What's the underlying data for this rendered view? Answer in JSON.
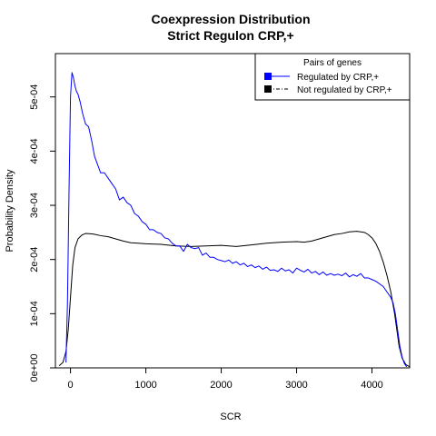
{
  "chart_data": {
    "type": "line",
    "title": "Coexpression Distribution",
    "subtitle": "Strict Regulon CRP,+",
    "xlabel": "SCR",
    "ylabel": "Probability Density",
    "xlim": [
      -200,
      4500
    ],
    "ylim": [
      0,
      0.00058
    ],
    "x_ticks": [
      0,
      1000,
      2000,
      3000,
      4000
    ],
    "x_tick_labels": [
      "0",
      "1000",
      "2000",
      "3000",
      "4000"
    ],
    "y_ticks": [
      0,
      0.0001,
      0.0002,
      0.0003,
      0.0004,
      0.0005
    ],
    "y_tick_labels": [
      "0e+00",
      "1e-04",
      "2e-04",
      "3e-04",
      "4e-04",
      "5e-04"
    ],
    "grid": false,
    "legend": {
      "title": "Pairs of genes",
      "placement": "top-right",
      "entries": [
        {
          "label": "Regulated by  CRP,+",
          "color": "#0000ff",
          "line": "solid"
        },
        {
          "label": "Not regulated by  CRP,+",
          "color": "#000000",
          "line": "dashdot"
        }
      ]
    },
    "series": [
      {
        "name": "Regulated by  CRP,+",
        "color": "#0000ff",
        "x": [
          -60,
          -40,
          -20,
          0,
          20,
          40,
          60,
          80,
          100,
          130,
          160,
          200,
          240,
          280,
          320,
          360,
          400,
          450,
          500,
          550,
          600,
          650,
          700,
          750,
          800,
          850,
          900,
          950,
          1000,
          1050,
          1100,
          1150,
          1200,
          1250,
          1300,
          1350,
          1400,
          1450,
          1500,
          1550,
          1600,
          1650,
          1700,
          1750,
          1800,
          1850,
          1900,
          1950,
          2000,
          2050,
          2100,
          2150,
          2200,
          2250,
          2300,
          2350,
          2400,
          2450,
          2500,
          2550,
          2600,
          2650,
          2700,
          2750,
          2800,
          2850,
          2900,
          2950,
          3000,
          3050,
          3100,
          3150,
          3200,
          3250,
          3300,
          3350,
          3400,
          3450,
          3500,
          3550,
          3600,
          3650,
          3700,
          3750,
          3800,
          3850,
          3900,
          3950,
          4000,
          4050,
          4100,
          4150,
          4200,
          4250,
          4280,
          4310,
          4340,
          4370,
          4400,
          4430,
          4460
        ],
        "values": [
          1e-05,
          0.00012,
          0.00032,
          0.0005,
          0.000545,
          0.000535,
          0.00052,
          0.00051,
          0.000505,
          0.00049,
          0.00047,
          0.00045,
          0.000445,
          0.00042,
          0.00039,
          0.000375,
          0.00036,
          0.00036,
          0.00035,
          0.00034,
          0.00033,
          0.00031,
          0.000315,
          0.000305,
          0.0003,
          0.000285,
          0.00028,
          0.00027,
          0.000265,
          0.000255,
          0.000255,
          0.00025,
          0.000248,
          0.00024,
          0.000238,
          0.00023,
          0.000225,
          0.000225,
          0.000215,
          0.000228,
          0.000222,
          0.00022,
          0.000222,
          0.000208,
          0.000212,
          0.000204,
          0.000204,
          0.0002,
          0.000198,
          0.000196,
          0.000199,
          0.000193,
          0.000196,
          0.00019,
          0.000193,
          0.000187,
          0.00019,
          0.000185,
          0.000188,
          0.000182,
          0.000186,
          0.00018,
          0.000181,
          0.000178,
          0.000184,
          0.000179,
          0.000181,
          0.000175,
          0.000184,
          0.00018,
          0.000177,
          0.000182,
          0.000175,
          0.000178,
          0.000172,
          0.000177,
          0.000171,
          0.000174,
          0.000171,
          0.000173,
          0.00017,
          0.000175,
          0.000168,
          0.000172,
          0.000169,
          0.000174,
          0.000166,
          0.000166,
          0.000163,
          0.00016,
          0.000155,
          0.00015,
          0.00014,
          0.00013,
          0.00012,
          0.0001,
          7e-05,
          4e-05,
          2e-05,
          8e-06,
          2e-06
        ]
      },
      {
        "name": "Not regulated by  CRP,+",
        "color": "#000000",
        "x": [
          -150,
          -100,
          -60,
          -30,
          0,
          30,
          60,
          100,
          150,
          200,
          300,
          400,
          500,
          600,
          700,
          800,
          900,
          1000,
          1200,
          1400,
          1600,
          1800,
          2000,
          2200,
          2400,
          2600,
          2800,
          3000,
          3100,
          3200,
          3300,
          3400,
          3500,
          3600,
          3700,
          3800,
          3900,
          3950,
          4000,
          4050,
          4100,
          4150,
          4200,
          4250,
          4300,
          4330,
          4360,
          4400,
          4450,
          4500
        ],
        "values": [
          4e-06,
          1e-05,
          3e-05,
          7e-05,
          0.00013,
          0.00019,
          0.000222,
          0.000238,
          0.000245,
          0.000248,
          0.000247,
          0.000244,
          0.000242,
          0.000238,
          0.000234,
          0.000231,
          0.00023,
          0.000229,
          0.000228,
          0.000225,
          0.000224,
          0.000225,
          0.000226,
          0.000224,
          0.000227,
          0.00023,
          0.000232,
          0.000233,
          0.000232,
          0.000234,
          0.000238,
          0.000242,
          0.000246,
          0.000248,
          0.000251,
          0.000252,
          0.00025,
          0.000246,
          0.00024,
          0.00023,
          0.000215,
          0.000195,
          0.00017,
          0.00014,
          0.0001,
          7e-05,
          4e-05,
          1.8e-05,
          6e-06,
          2e-06
        ]
      }
    ]
  }
}
